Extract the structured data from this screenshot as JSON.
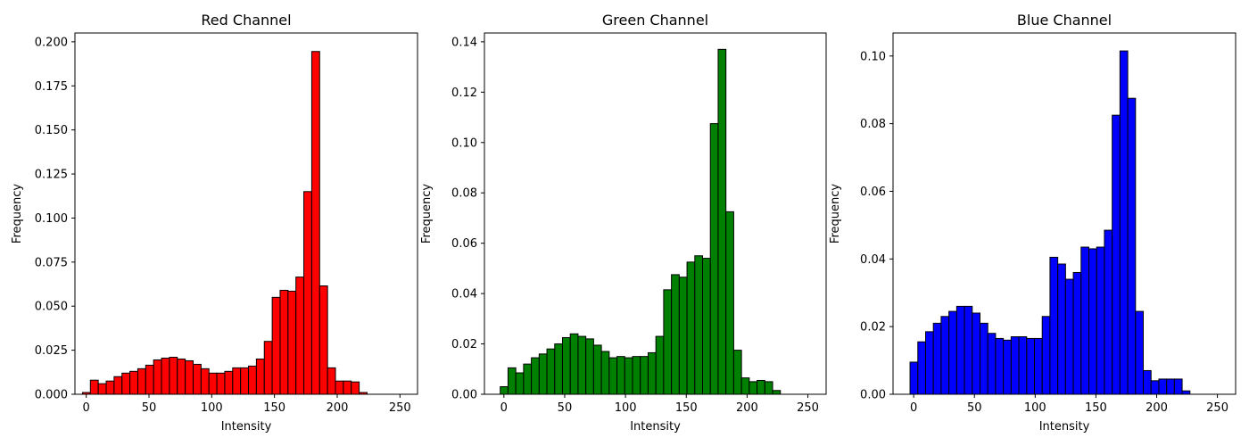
{
  "chart_data": [
    {
      "type": "bar",
      "title": "Red Channel",
      "xlabel": "Intensity",
      "ylabel": "Frequency",
      "color": "#ff0000",
      "edgecolor": "#000000",
      "xlim": [
        -9,
        264
      ],
      "ylim": [
        0,
        0.205
      ],
      "xticks": [
        0,
        50,
        100,
        150,
        200,
        250
      ],
      "yticks": [
        "0.000",
        "0.025",
        "0.050",
        "0.075",
        "0.100",
        "0.125",
        "0.150",
        "0.175",
        "0.200"
      ],
      "bin_start": -3,
      "bin_width": 6.3,
      "values": [
        0.001,
        0.008,
        0.006,
        0.0075,
        0.01,
        0.012,
        0.013,
        0.0145,
        0.0165,
        0.0195,
        0.0205,
        0.021,
        0.02,
        0.019,
        0.017,
        0.0145,
        0.012,
        0.012,
        0.013,
        0.015,
        0.015,
        0.016,
        0.02,
        0.03,
        0.055,
        0.059,
        0.0585,
        0.0665,
        0.115,
        0.1945,
        0.0615,
        0.015,
        0.0075,
        0.0075,
        0.007,
        0.001,
        0,
        0,
        0,
        0,
        0
      ]
    },
    {
      "type": "bar",
      "title": "Green Channel",
      "xlabel": "Intensity",
      "ylabel": "Frequency",
      "color": "#008000",
      "edgecolor": "#000000",
      "xlim": [
        -16,
        265
      ],
      "ylim": [
        0,
        0.1435
      ],
      "xticks": [
        0,
        50,
        100,
        150,
        200,
        250
      ],
      "yticks": [
        "0.00",
        "0.02",
        "0.04",
        "0.06",
        "0.08",
        "0.10",
        "0.12",
        "0.14"
      ],
      "bin_start": -3,
      "bin_width": 6.4,
      "values": [
        0.003,
        0.0105,
        0.0085,
        0.012,
        0.0145,
        0.016,
        0.018,
        0.02,
        0.0225,
        0.024,
        0.023,
        0.022,
        0.0195,
        0.017,
        0.0145,
        0.015,
        0.0145,
        0.015,
        0.015,
        0.0165,
        0.023,
        0.0415,
        0.0475,
        0.0465,
        0.0525,
        0.055,
        0.054,
        0.1075,
        0.137,
        0.0725,
        0.0175,
        0.0065,
        0.005,
        0.0055,
        0.005,
        0.0015,
        0,
        0,
        0,
        0,
        0
      ]
    },
    {
      "type": "bar",
      "title": "Blue Channel",
      "xlabel": "Intensity",
      "ylabel": "Frequency",
      "color": "#0000ff",
      "edgecolor": "#000000",
      "xlim": [
        -17,
        265
      ],
      "ylim": [
        0,
        0.1068
      ],
      "xticks": [
        0,
        50,
        100,
        150,
        200,
        250
      ],
      "yticks": [
        "0.00",
        "0.02",
        "0.04",
        "0.06",
        "0.08",
        "0.10"
      ],
      "bin_start": -3,
      "bin_width": 6.4,
      "values": [
        0.0095,
        0.0155,
        0.0185,
        0.021,
        0.023,
        0.0245,
        0.026,
        0.026,
        0.024,
        0.021,
        0.018,
        0.0165,
        0.016,
        0.017,
        0.017,
        0.0165,
        0.0165,
        0.023,
        0.0405,
        0.0385,
        0.034,
        0.036,
        0.0435,
        0.043,
        0.0435,
        0.0485,
        0.0825,
        0.1015,
        0.0875,
        0.0245,
        0.007,
        0.004,
        0.0045,
        0.0045,
        0.0045,
        0.001,
        0,
        0,
        0,
        0,
        0
      ]
    }
  ]
}
